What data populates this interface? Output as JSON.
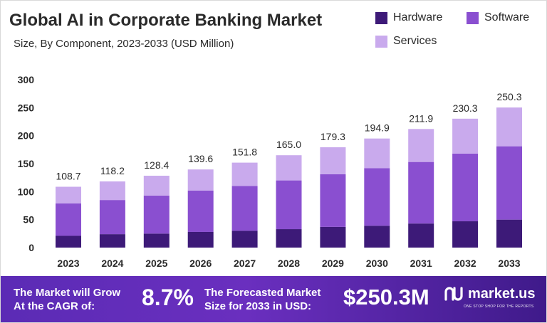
{
  "chart_data": {
    "type": "bar",
    "stacked": true,
    "title": "Global AI in Corporate Banking Market",
    "subtitle": "Size, By Component, 2023-2033 (USD Million)",
    "categories": [
      "2023",
      "2024",
      "2025",
      "2026",
      "2027",
      "2028",
      "2029",
      "2030",
      "2031",
      "2032",
      "2033"
    ],
    "series": [
      {
        "name": "Hardware",
        "color": "#3d1a78",
        "values": [
          21,
          24,
          25,
          28,
          30,
          33,
          37,
          39,
          43,
          47,
          50
        ]
      },
      {
        "name": "Software",
        "color": "#8a4fd0",
        "values": [
          58,
          61,
          68,
          74,
          80,
          87,
          94,
          103,
          110,
          121,
          131
        ]
      },
      {
        "name": "Services",
        "color": "#c9aaed",
        "values": [
          29.7,
          33.2,
          35.4,
          37.6,
          41.8,
          45.0,
          48.3,
          52.9,
          58.9,
          62.3,
          69.3
        ]
      }
    ],
    "totals": [
      "108.7",
      "118.2",
      "128.4",
      "139.6",
      "151.8",
      "165.0",
      "179.3",
      "194.9",
      "211.9",
      "230.3",
      "250.3"
    ],
    "y_ticks": [
      "0",
      "50",
      "100",
      "150",
      "200",
      "250",
      "300"
    ],
    "ylim": [
      0,
      300
    ],
    "grid": false,
    "legend_position": "top-right"
  },
  "footer": {
    "cagr_label_line1": "The Market will Grow",
    "cagr_label_line2": "At the CAGR of:",
    "cagr_value": "8.7%",
    "forecast_label_line1": "The Forecasted Market",
    "forecast_label_line2": "Size for 2033 in USD:",
    "forecast_value": "$250.3M",
    "brand_name": "market.us",
    "brand_tagline": "ONE STOP SHOP FOR THE REPORTS",
    "brand_icon": "market-us-logo-icon"
  }
}
